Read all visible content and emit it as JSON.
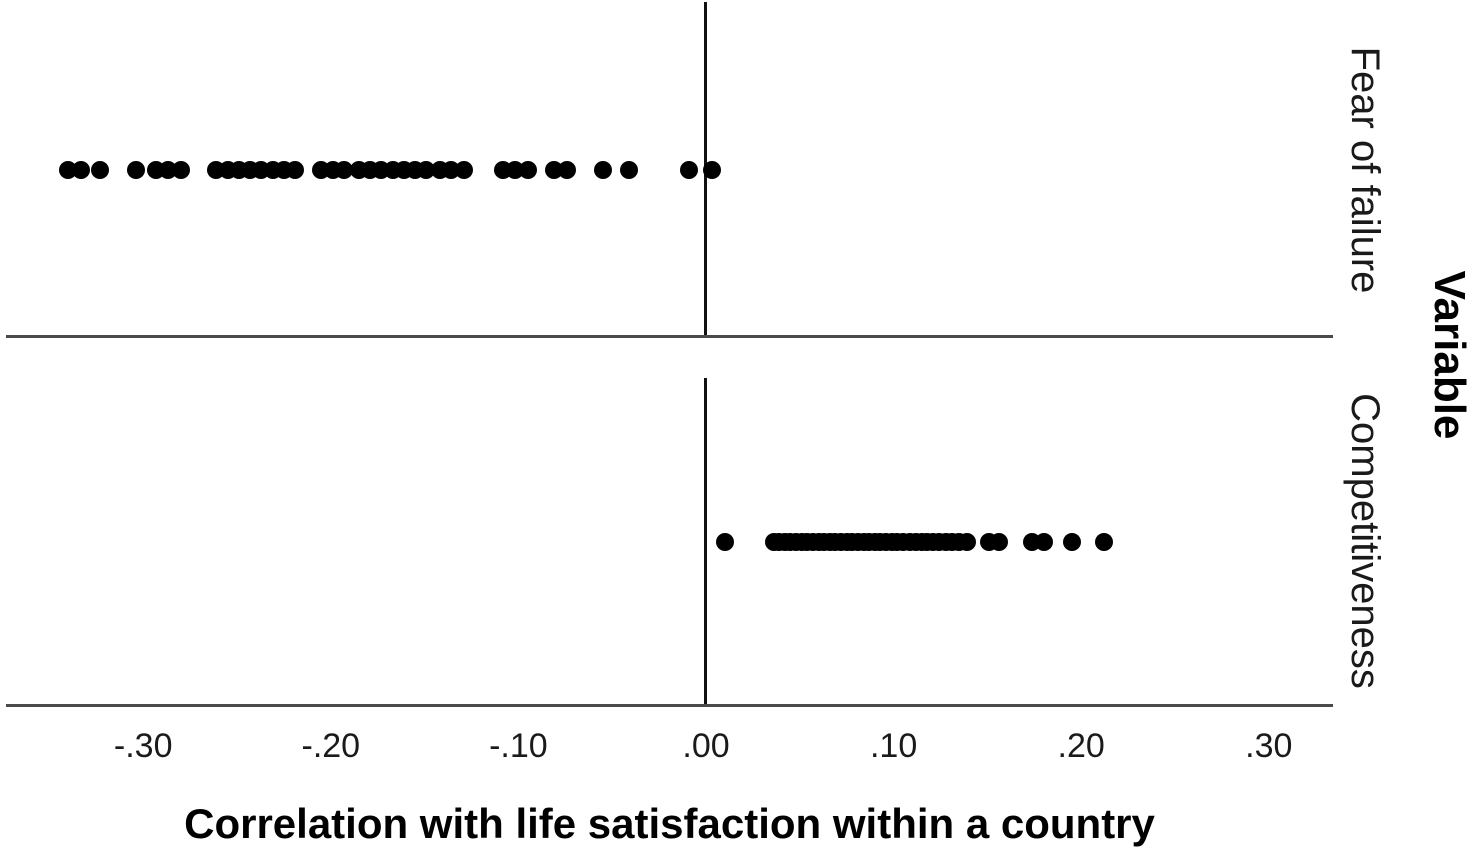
{
  "chart_data": {
    "type": "scatter",
    "subtype": "strip-dot-plot",
    "title": "",
    "xlabel": "Correlation with life satisfaction within a country",
    "ylabel": "Variable",
    "xlim": [
      -0.372,
      0.334
    ],
    "grid": false,
    "legend_position": "none",
    "reference_line_x": 0.0,
    "dot_color": "#000000",
    "axis_line_color": "#4a4a4a",
    "reference_line_color": "#111111",
    "x_ticks": [
      {
        "label": "-.30",
        "value": -0.3
      },
      {
        "label": "-.20",
        "value": -0.2
      },
      {
        "label": "-.10",
        "value": -0.1
      },
      {
        "label": ".00",
        "value": 0.0
      },
      {
        "label": ".10",
        "value": 0.1
      },
      {
        "label": ".20",
        "value": 0.2
      },
      {
        "label": ".30",
        "value": 0.3
      }
    ],
    "series": [
      {
        "name": "Fear of failure",
        "values": [
          -0.34,
          -0.333,
          -0.323,
          -0.304,
          -0.293,
          -0.287,
          -0.28,
          -0.261,
          -0.255,
          -0.249,
          -0.243,
          -0.237,
          -0.231,
          -0.225,
          -0.219,
          -0.205,
          -0.199,
          -0.193,
          -0.185,
          -0.179,
          -0.173,
          -0.167,
          -0.161,
          -0.155,
          -0.149,
          -0.142,
          -0.136,
          -0.129,
          -0.108,
          -0.102,
          -0.095,
          -0.081,
          -0.074,
          -0.055,
          -0.041,
          -0.009,
          0.003
        ]
      },
      {
        "name": "Competitiveness",
        "values": [
          0.01,
          0.036,
          0.039,
          0.042,
          0.045,
          0.048,
          0.051,
          0.054,
          0.057,
          0.06,
          0.063,
          0.066,
          0.069,
          0.072,
          0.075,
          0.078,
          0.081,
          0.084,
          0.087,
          0.09,
          0.093,
          0.096,
          0.099,
          0.102,
          0.105,
          0.109,
          0.112,
          0.115,
          0.118,
          0.121,
          0.124,
          0.128,
          0.131,
          0.135,
          0.139,
          0.151,
          0.156,
          0.174,
          0.18,
          0.195,
          0.212
        ]
      }
    ]
  }
}
